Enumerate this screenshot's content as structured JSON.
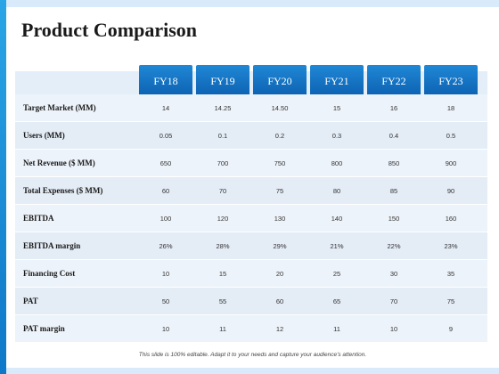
{
  "title": "Product Comparison",
  "columns": [
    "FY18",
    "FY19",
    "FY20",
    "FY21",
    "FY22",
    "FY23"
  ],
  "rows": [
    {
      "label": "Target Market (MM)",
      "values": [
        "14",
        "14.25",
        "14.50",
        "15",
        "16",
        "18"
      ]
    },
    {
      "label": "Users (MM)",
      "values": [
        "0.05",
        "0.1",
        "0.2",
        "0.3",
        "0.4",
        "0.5"
      ]
    },
    {
      "label": "Net Revenue ($ MM)",
      "values": [
        "650",
        "700",
        "750",
        "800",
        "850",
        "900"
      ]
    },
    {
      "label": "Total Expenses ($ MM)",
      "values": [
        "60",
        "70",
        "75",
        "80",
        "85",
        "90"
      ]
    },
    {
      "label": "EBITDA",
      "values": [
        "100",
        "120",
        "130",
        "140",
        "150",
        "160"
      ]
    },
    {
      "label": "EBITDA margin",
      "values": [
        "26%",
        "28%",
        "29%",
        "21%",
        "22%",
        "23%"
      ]
    },
    {
      "label": "Financing Cost",
      "values": [
        "10",
        "15",
        "20",
        "25",
        "30",
        "35"
      ]
    },
    {
      "label": "PAT",
      "values": [
        "50",
        "55",
        "60",
        "65",
        "70",
        "75"
      ]
    },
    {
      "label": "PAT margin",
      "values": [
        "10",
        "11",
        "12",
        "11",
        "10",
        "9"
      ]
    }
  ],
  "footer": "This slide is 100% editable. Adapt it to your needs and capture your audience's attention.",
  "colors": {
    "accent": "#0e63b3",
    "accent_light": "#1f88d6",
    "side_bar": "#1b8fd9",
    "background": "#d9ebfa",
    "row_bg": "#edf3fa",
    "row_bg_alt": "#e4ecf6"
  }
}
